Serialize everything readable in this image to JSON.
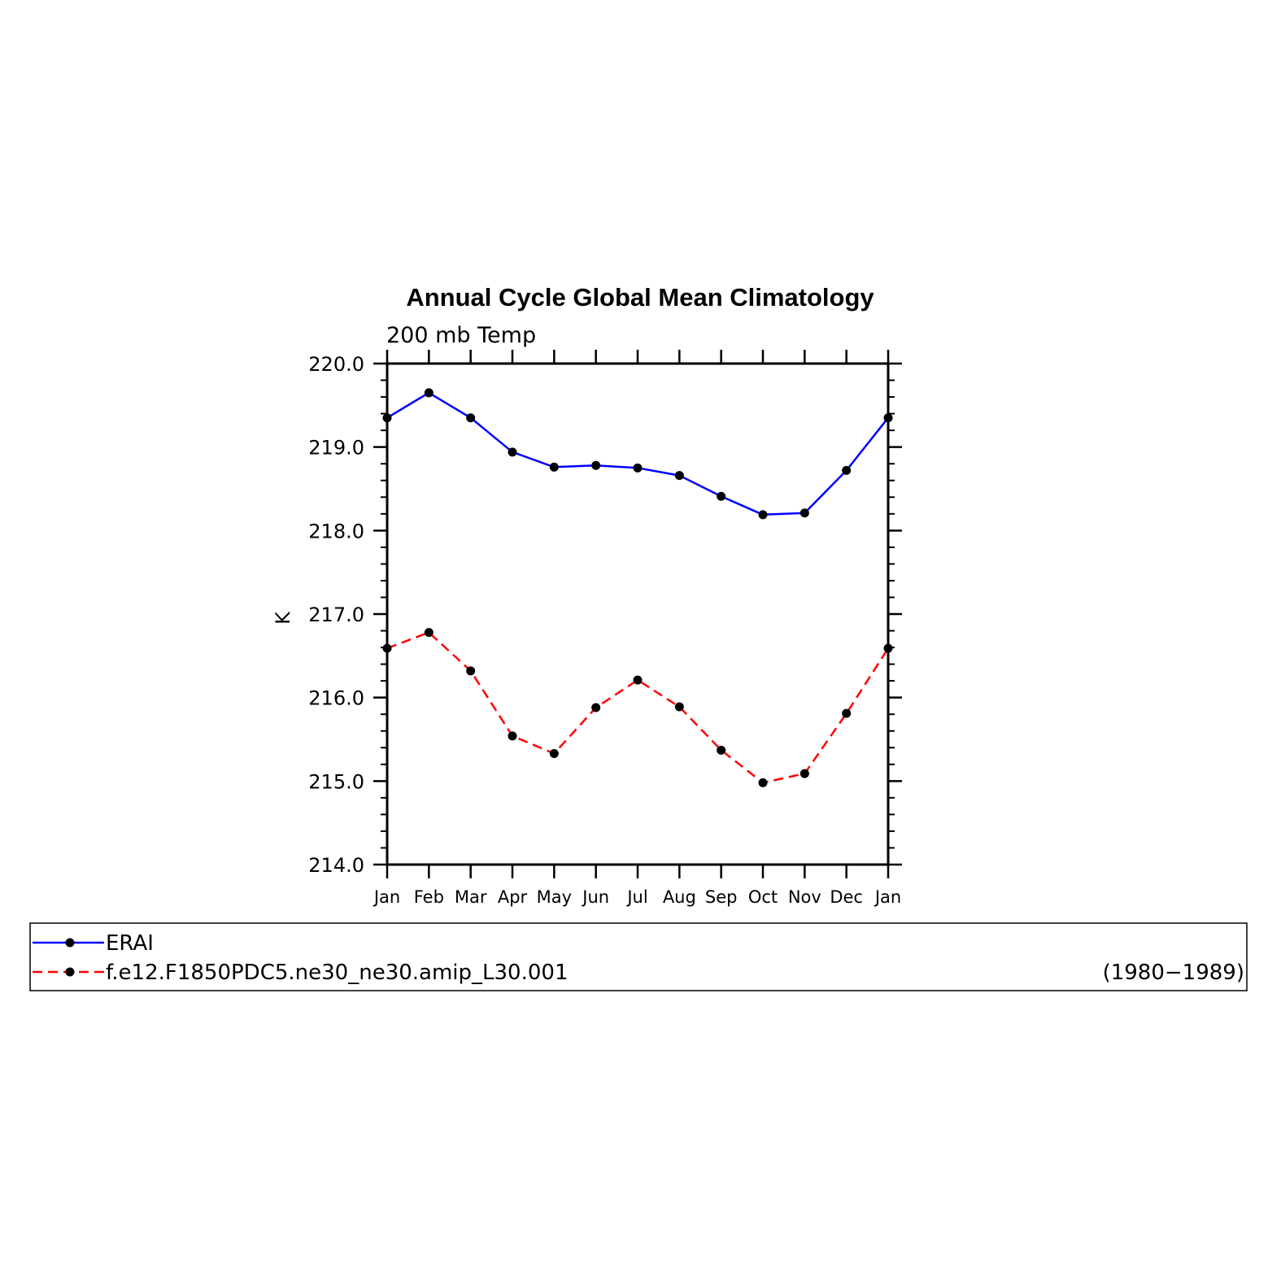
{
  "chart_data": {
    "type": "line",
    "title": "Annual Cycle Global Mean Climatology",
    "subtitle": "200 mb Temp",
    "ylabel": "K",
    "xlabel": "",
    "categories": [
      "Jan",
      "Feb",
      "Mar",
      "Apr",
      "May",
      "Jun",
      "Jul",
      "Aug",
      "Sep",
      "Oct",
      "Nov",
      "Dec",
      "Jan"
    ],
    "ylim": [
      214.0,
      220.0
    ],
    "yticks": [
      "214.0",
      "215.0",
      "216.0",
      "217.0",
      "218.0",
      "219.0",
      "220.0"
    ],
    "grid": false,
    "series": [
      {
        "name": "ERAI",
        "color": "#0000ff",
        "dash": "solid",
        "values": [
          219.35,
          219.65,
          219.35,
          218.94,
          218.76,
          218.78,
          218.75,
          218.66,
          218.41,
          218.19,
          218.21,
          218.72,
          219.35
        ]
      },
      {
        "name": "f.e12.F1850PDC5.ne30_ne30.amip_L30.001",
        "color": "#ff0000",
        "dash": "dashed",
        "values": [
          216.59,
          216.78,
          216.32,
          215.54,
          215.33,
          215.88,
          216.21,
          215.89,
          215.37,
          214.98,
          215.09,
          215.81,
          216.59
        ]
      }
    ],
    "legend": {
      "placement": "bottom",
      "period": "(1980−1989)"
    },
    "marker_color": "#000000"
  }
}
